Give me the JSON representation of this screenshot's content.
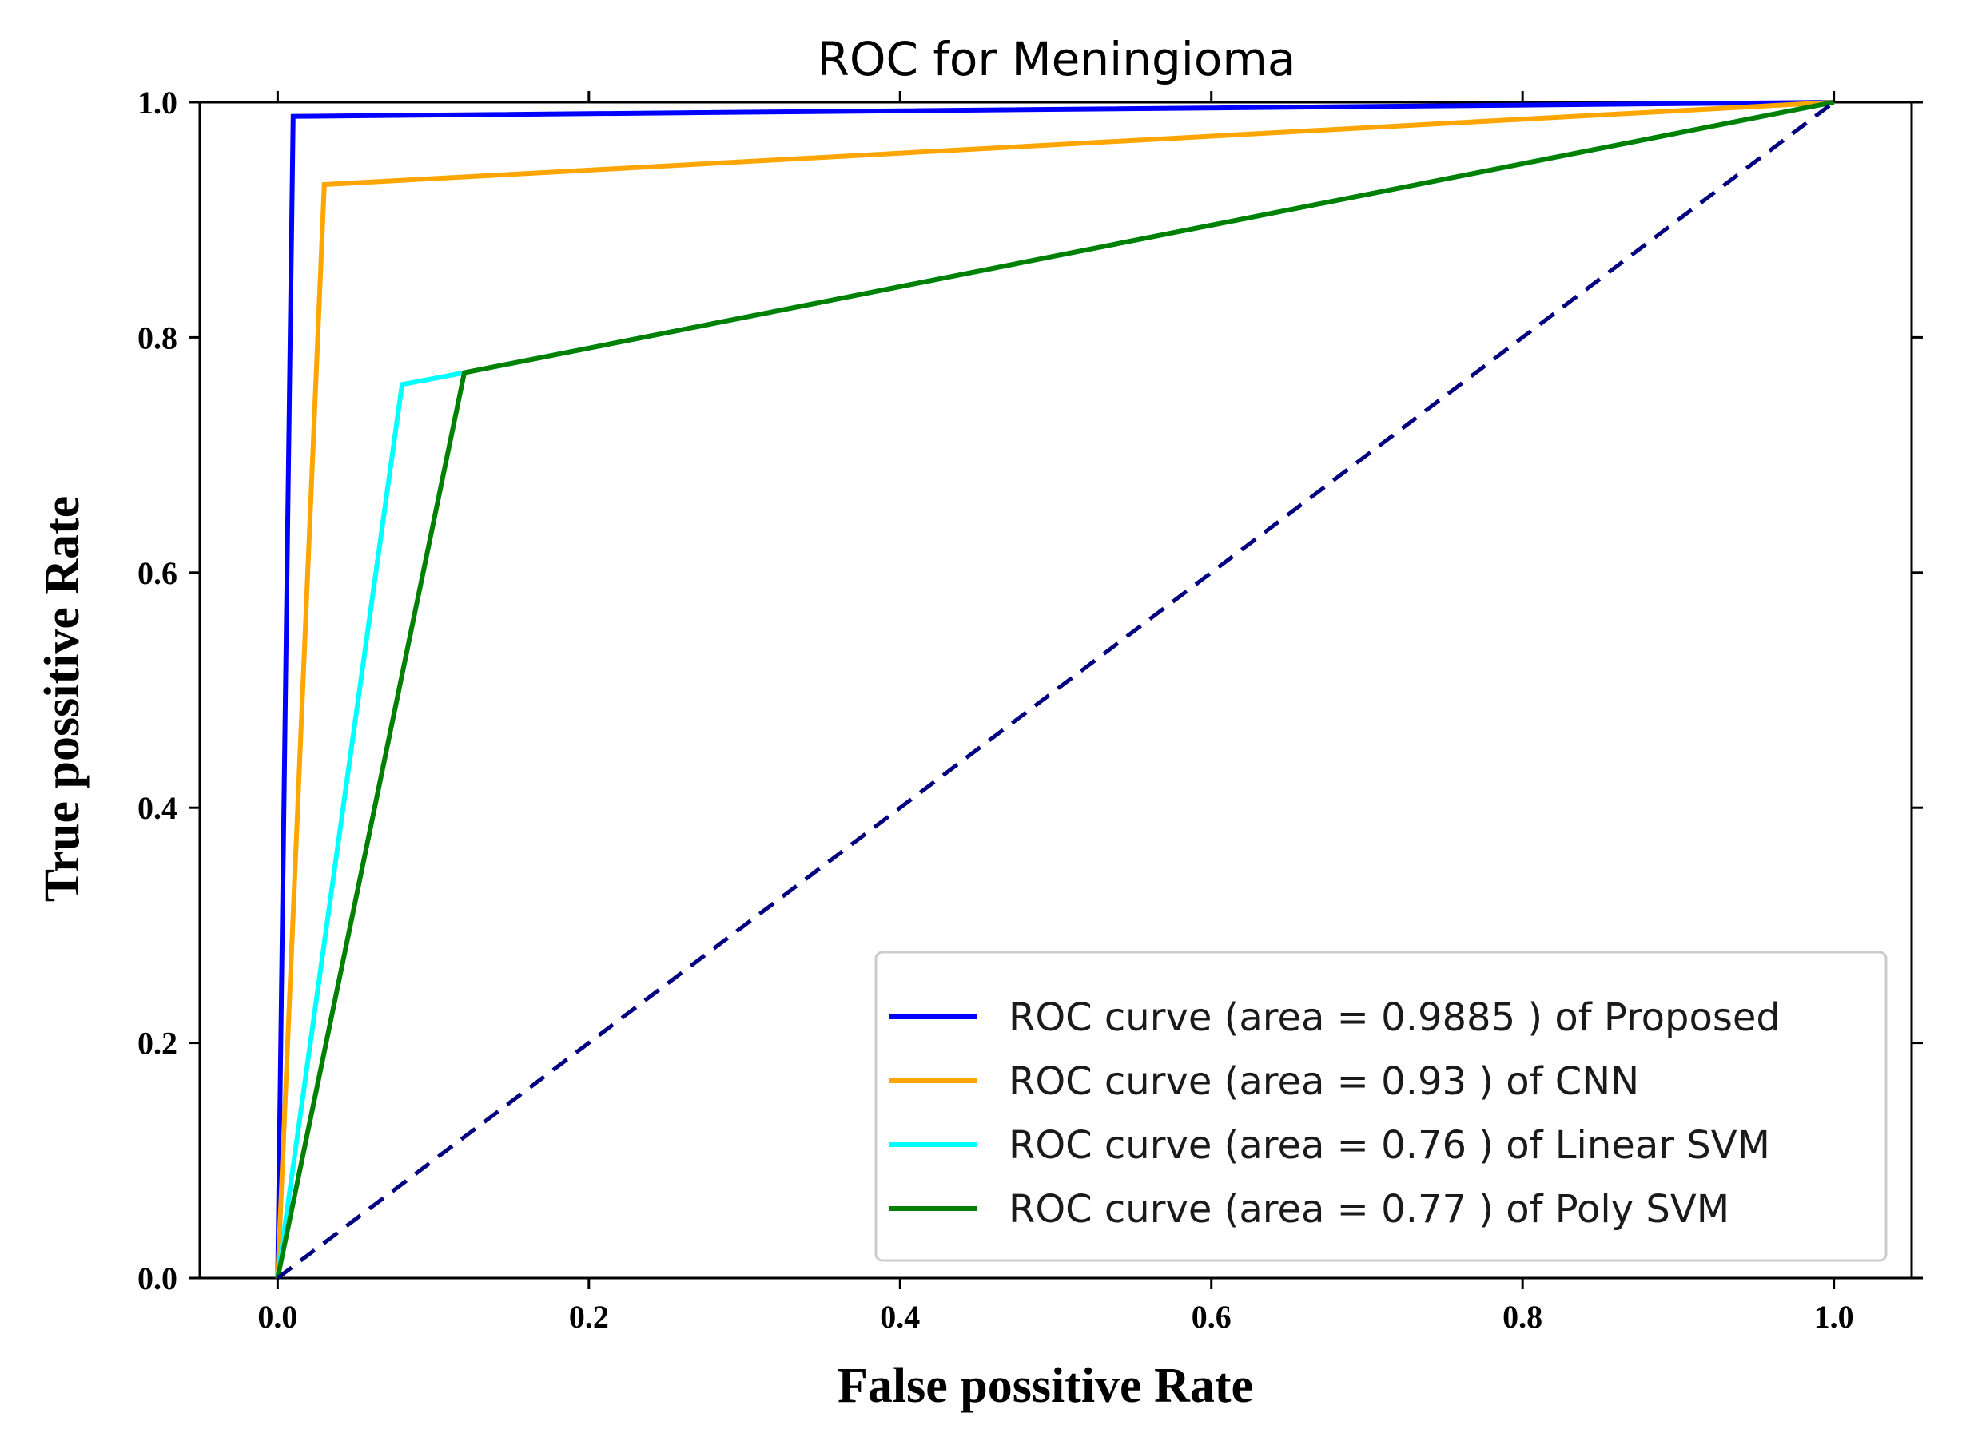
{
  "chart_data": {
    "type": "line",
    "title": "ROC for Meningioma",
    "xlabel": "False possitive Rate",
    "ylabel": "True possitive Rate",
    "xlim": [
      -0.05,
      1.05
    ],
    "ylim": [
      0.0,
      1.0
    ],
    "xticks": [
      "0.0",
      "0.2",
      "0.4",
      "0.6",
      "0.8",
      "1.0"
    ],
    "yticks": [
      "0.0",
      "0.2",
      "0.4",
      "0.6",
      "0.8",
      "1.0"
    ],
    "grid": false,
    "legend_position": "lower-right",
    "series": [
      {
        "name": "ROC curve (area = 0.9885 ) of Proposed",
        "color": "#0000ff",
        "x": [
          0.0,
          0.01,
          1.0
        ],
        "y": [
          0.0,
          0.988,
          1.0
        ]
      },
      {
        "name": "ROC curve (area = 0.93 ) of CNN",
        "color": "#ffa500",
        "x": [
          0.0,
          0.03,
          1.0
        ],
        "y": [
          0.0,
          0.93,
          1.0
        ]
      },
      {
        "name": "ROC curve (area = 0.76 ) of Linear SVM",
        "color": "#00ffff",
        "x": [
          0.0,
          0.08,
          0.12,
          1.0
        ],
        "y": [
          0.0,
          0.76,
          0.77,
          1.0
        ]
      },
      {
        "name": "ROC curve (area = 0.77 ) of Poly SVM",
        "color": "#008000",
        "x": [
          0.0,
          0.12,
          1.0
        ],
        "y": [
          0.0,
          0.77,
          1.0
        ]
      }
    ],
    "reference_line": {
      "color": "#000080",
      "style": "dashed",
      "x": [
        0.0,
        1.0
      ],
      "y": [
        0.0,
        1.0
      ]
    }
  }
}
